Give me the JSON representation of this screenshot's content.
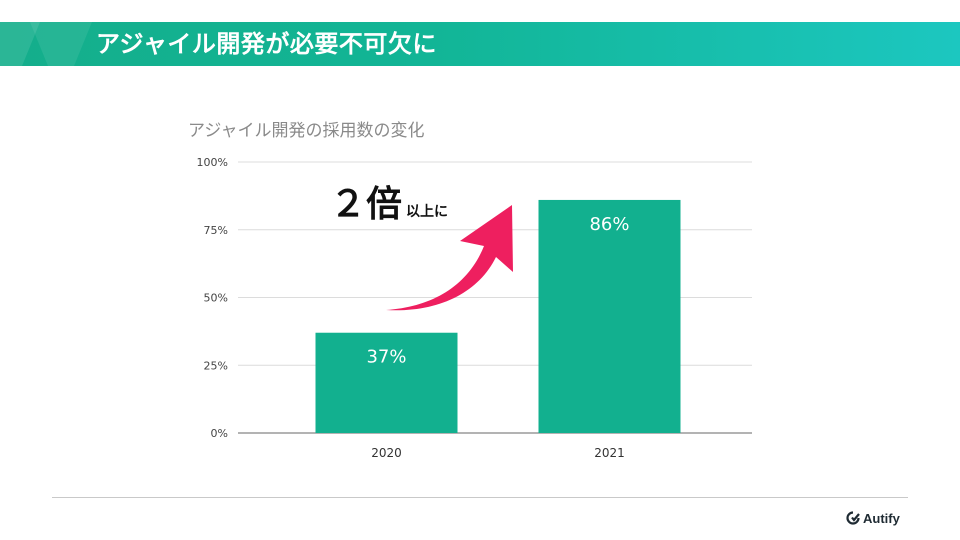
{
  "slide": {
    "title": "アジャイル開発が必要不可欠に"
  },
  "callout": {
    "big_text": "２倍",
    "small_text": "以上に",
    "arrow_color": "#ee1f5f"
  },
  "brand": {
    "name": "Autify",
    "logo_icon": "autify-logo-icon"
  },
  "colors": {
    "accent": "#12b596",
    "bar": "#12b08f",
    "title_gradient_end": "#1cc7c0"
  },
  "chart_data": {
    "type": "bar",
    "title": "アジャイル開発の採用数の変化",
    "categories": [
      "2020",
      "2021"
    ],
    "values": [
      37,
      86
    ],
    "value_labels": [
      "37%",
      "86%"
    ],
    "ylim": [
      0,
      100
    ],
    "yticks": [
      0,
      25,
      50,
      75,
      100
    ],
    "ytick_labels": [
      "0%",
      "25%",
      "50%",
      "75%",
      "100%"
    ],
    "xlabel": "",
    "ylabel": "",
    "grid": true,
    "legend": "none"
  }
}
